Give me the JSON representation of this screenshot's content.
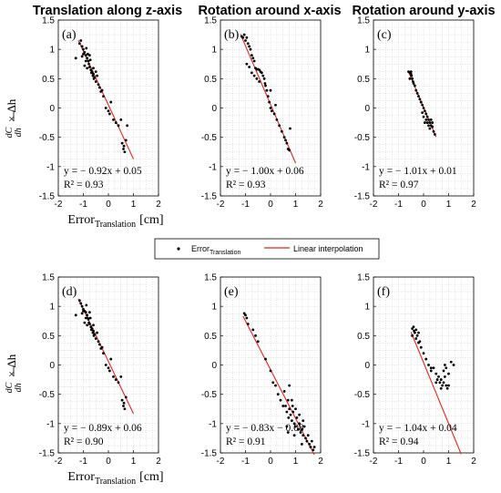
{
  "legend": {
    "points_label": "Error",
    "points_sub": "Translation",
    "line_label": "Linear interpolation"
  },
  "y_axis_label": {
    "numerator": "dC",
    "denominator": "dh",
    "rest": "× Δh"
  },
  "colors": {
    "line": "#e8231f",
    "points": "#000000",
    "grid": "#c8c8c8"
  },
  "chart_data": [
    {
      "type": "scatter",
      "panel": "(a)",
      "title": "Translation along z-axis",
      "xlabel": "Error",
      "xlabel_sub": "Translation",
      "xlabel_unit": "[cm]",
      "xlim": [
        -2,
        2
      ],
      "ylim": [
        -1.5,
        1.5
      ],
      "xticks": [
        -2,
        -1,
        0,
        1,
        2
      ],
      "yticks": [
        -1.5,
        -1,
        -0.5,
        0,
        0.5,
        1,
        1.5
      ],
      "grid": true,
      "fit": {
        "slope": -0.92,
        "intercept": 0.05,
        "x_range": [
          -1.2,
          1.0
        ]
      },
      "equation": "y = − 0.92x + 0.05",
      "r2": "R² = 0.93",
      "points": [
        [
          -1.15,
          1.1
        ],
        [
          -1.1,
          1.15
        ],
        [
          -1.05,
          1.05
        ],
        [
          -1.0,
          1.0
        ],
        [
          -0.95,
          0.95
        ],
        [
          -0.9,
          0.9
        ],
        [
          -0.88,
          1.02
        ],
        [
          -0.85,
          0.85
        ],
        [
          -0.82,
          0.92
        ],
        [
          -0.8,
          0.8
        ],
        [
          -0.78,
          0.75
        ],
        [
          -0.75,
          0.7
        ],
        [
          -0.72,
          0.82
        ],
        [
          -0.7,
          0.65
        ],
        [
          -0.68,
          0.6
        ],
        [
          -0.65,
          0.62
        ],
        [
          -0.62,
          0.55
        ],
        [
          -0.6,
          0.58
        ],
        [
          -0.58,
          0.5
        ],
        [
          -0.55,
          0.52
        ],
        [
          -0.5,
          0.45
        ],
        [
          -0.45,
          0.55
        ],
        [
          -0.4,
          0.4
        ],
        [
          -0.35,
          0.35
        ],
        [
          -0.3,
          0.28
        ],
        [
          -0.25,
          0.3
        ],
        [
          -0.2,
          0.2
        ],
        [
          -0.1,
          0.0
        ],
        [
          0.0,
          -0.05
        ],
        [
          0.05,
          -0.1
        ],
        [
          0.1,
          0.1
        ],
        [
          0.2,
          -0.2
        ],
        [
          0.3,
          -0.25
        ],
        [
          0.4,
          -0.3
        ],
        [
          0.5,
          -0.2
        ],
        [
          0.55,
          -0.6
        ],
        [
          0.6,
          -0.7
        ],
        [
          0.65,
          -0.75
        ],
        [
          0.7,
          -0.55
        ],
        [
          0.75,
          -0.3
        ],
        [
          -1.3,
          0.85
        ],
        [
          -0.95,
          0.72
        ],
        [
          -0.85,
          0.68
        ],
        [
          -1.05,
          0.88
        ],
        [
          -0.6,
          0.68
        ],
        [
          -0.5,
          0.62
        ],
        [
          0.62,
          -0.65
        ],
        [
          -0.9,
          0.8
        ],
        [
          -0.75,
          0.9
        ],
        [
          -1.0,
          0.92
        ]
      ]
    },
    {
      "type": "scatter",
      "panel": "(b)",
      "title": "Rotation around x-axis",
      "xlabel": "",
      "xlim": [
        -2,
        2
      ],
      "ylim": [
        -1.5,
        1.5
      ],
      "xticks": [
        -2,
        -1,
        0,
        1,
        2
      ],
      "yticks": [
        -1.5,
        -1,
        -0.5,
        0,
        0.5,
        1,
        1.5
      ],
      "grid": true,
      "fit": {
        "slope": -1.0,
        "intercept": 0.06,
        "x_range": [
          -1.2,
          1.0
        ]
      },
      "equation": "y = − 1.00x + 0.06",
      "r2": "R² = 0.93",
      "points": [
        [
          -1.15,
          1.22
        ],
        [
          -1.1,
          1.2
        ],
        [
          -1.05,
          1.25
        ],
        [
          -1.0,
          1.15
        ],
        [
          -0.95,
          1.2
        ],
        [
          -0.9,
          1.1
        ],
        [
          -0.85,
          1.05
        ],
        [
          -0.8,
          1.0
        ],
        [
          -0.75,
          0.9
        ],
        [
          -0.7,
          0.85
        ],
        [
          -0.65,
          0.8
        ],
        [
          -0.6,
          0.68
        ],
        [
          -0.55,
          0.66
        ],
        [
          -0.5,
          0.66
        ],
        [
          -0.45,
          0.65
        ],
        [
          -0.4,
          0.62
        ],
        [
          -0.35,
          0.6
        ],
        [
          -0.3,
          0.55
        ],
        [
          -0.25,
          0.5
        ],
        [
          -0.22,
          0.42
        ],
        [
          -0.2,
          0.38
        ],
        [
          -0.15,
          0.3
        ],
        [
          -0.1,
          0.2
        ],
        [
          -0.05,
          0.1
        ],
        [
          0.0,
          0.0
        ],
        [
          0.05,
          -0.05
        ],
        [
          0.15,
          -0.1
        ],
        [
          0.25,
          -0.2
        ],
        [
          0.35,
          -0.3
        ],
        [
          0.45,
          -0.4
        ],
        [
          0.55,
          -0.5
        ],
        [
          0.6,
          -0.55
        ],
        [
          0.65,
          -0.6
        ],
        [
          0.7,
          -0.7
        ],
        [
          0.75,
          -0.72
        ],
        [
          0.78,
          -0.35
        ],
        [
          -0.95,
          0.75
        ],
        [
          -0.85,
          0.7
        ],
        [
          -0.75,
          0.6
        ],
        [
          -0.65,
          0.55
        ],
        [
          -0.55,
          0.5
        ],
        [
          0.0,
          0.3
        ],
        [
          0.2,
          0.05
        ],
        [
          -0.45,
          0.45
        ]
      ]
    },
    {
      "type": "scatter",
      "panel": "(c)",
      "title": "Rotation around y-axis",
      "xlabel": "",
      "xlim": [
        -2,
        2
      ],
      "ylim": [
        -1.5,
        1.5
      ],
      "xticks": [
        -2,
        -1,
        0,
        1,
        2
      ],
      "yticks": [
        -1.5,
        -1,
        -0.5,
        0,
        0.5,
        1,
        1.5
      ],
      "grid": true,
      "fit": {
        "slope": -1.01,
        "intercept": 0.01,
        "x_range": [
          -0.6,
          0.5
        ]
      },
      "equation": "y = − 1.01x + 0.01",
      "r2": "R² = 0.97",
      "points": [
        [
          -0.6,
          0.62
        ],
        [
          -0.55,
          0.6
        ],
        [
          -0.5,
          0.58
        ],
        [
          -0.48,
          0.55
        ],
        [
          -0.45,
          0.5
        ],
        [
          -0.42,
          0.45
        ],
        [
          -0.4,
          0.42
        ],
        [
          -0.35,
          0.38
        ],
        [
          -0.3,
          0.3
        ],
        [
          -0.25,
          0.25
        ],
        [
          -0.2,
          0.2
        ],
        [
          -0.15,
          0.15
        ],
        [
          -0.1,
          0.1
        ],
        [
          -0.05,
          0.05
        ],
        [
          0.0,
          0.0
        ],
        [
          0.05,
          -0.05
        ],
        [
          0.1,
          -0.1
        ],
        [
          0.15,
          -0.15
        ],
        [
          0.2,
          -0.2
        ],
        [
          0.25,
          -0.25
        ],
        [
          0.3,
          -0.3
        ],
        [
          0.35,
          -0.32
        ],
        [
          0.4,
          -0.4
        ],
        [
          0.45,
          -0.45
        ],
        [
          0.1,
          -0.2
        ],
        [
          0.15,
          -0.25
        ],
        [
          0.2,
          -0.3
        ],
        [
          0.3,
          -0.2
        ],
        [
          0.35,
          -0.25
        ],
        [
          -0.05,
          -0.08
        ],
        [
          0.0,
          -0.15
        ],
        [
          0.05,
          -0.25
        ],
        [
          0.25,
          -0.35
        ],
        [
          -0.55,
          0.5
        ],
        [
          -0.5,
          0.62
        ]
      ]
    },
    {
      "type": "scatter",
      "panel": "(d)",
      "title": "",
      "xlabel": "Error",
      "xlabel_sub": "Translation",
      "xlabel_unit": "[cm]",
      "xlim": [
        -2,
        2
      ],
      "ylim": [
        -1.5,
        1.5
      ],
      "xticks": [
        -2,
        -1,
        0,
        1,
        2
      ],
      "yticks": [
        -1.5,
        -1,
        -0.5,
        0,
        0.5,
        1,
        1.5
      ],
      "grid": true,
      "fit": {
        "slope": -0.89,
        "intercept": 0.06,
        "x_range": [
          -1.2,
          1.0
        ]
      },
      "equation": "y = − 0.89x + 0.06",
      "r2": "R² = 0.90",
      "points": [
        [
          -1.15,
          1.1
        ],
        [
          -1.1,
          1.05
        ],
        [
          -1.05,
          1.0
        ],
        [
          -1.0,
          0.95
        ],
        [
          -0.95,
          0.92
        ],
        [
          -0.9,
          0.9
        ],
        [
          -0.88,
          1.02
        ],
        [
          -0.85,
          0.85
        ],
        [
          -0.82,
          0.8
        ],
        [
          -0.8,
          0.78
        ],
        [
          -0.78,
          0.72
        ],
        [
          -0.75,
          0.7
        ],
        [
          -0.72,
          0.8
        ],
        [
          -0.7,
          0.65
        ],
        [
          -0.68,
          0.6
        ],
        [
          -0.65,
          0.62
        ],
        [
          -0.62,
          0.55
        ],
        [
          -0.6,
          0.58
        ],
        [
          -0.58,
          0.5
        ],
        [
          -0.55,
          0.52
        ],
        [
          -0.5,
          0.45
        ],
        [
          -0.45,
          0.55
        ],
        [
          -0.4,
          0.4
        ],
        [
          -0.35,
          0.35
        ],
        [
          -0.3,
          0.28
        ],
        [
          -0.25,
          0.3
        ],
        [
          -0.2,
          0.2
        ],
        [
          -0.1,
          0.0
        ],
        [
          0.0,
          -0.05
        ],
        [
          0.05,
          -0.1
        ],
        [
          0.1,
          0.1
        ],
        [
          0.2,
          -0.2
        ],
        [
          0.3,
          -0.25
        ],
        [
          0.4,
          -0.3
        ],
        [
          0.5,
          -0.2
        ],
        [
          0.55,
          -0.6
        ],
        [
          0.6,
          -0.7
        ],
        [
          0.65,
          -0.75
        ],
        [
          0.7,
          -0.55
        ],
        [
          -1.3,
          0.85
        ],
        [
          -0.95,
          0.72
        ],
        [
          -0.85,
          0.68
        ],
        [
          -1.05,
          0.88
        ],
        [
          -0.6,
          0.68
        ],
        [
          0.62,
          -0.65
        ],
        [
          -0.9,
          0.8
        ],
        [
          -0.75,
          0.9
        ],
        [
          -1.0,
          0.92
        ]
      ]
    },
    {
      "type": "scatter",
      "panel": "(e)",
      "title": "",
      "xlabel": "",
      "xlim": [
        -2,
        2
      ],
      "ylim": [
        -1.5,
        1.5
      ],
      "xticks": [
        -2,
        -1,
        0,
        1,
        2
      ],
      "yticks": [
        -1.5,
        -1,
        -0.5,
        0,
        0.5,
        1,
        1.5
      ],
      "grid": true,
      "fit": {
        "slope": -0.83,
        "intercept": -0.08,
        "x_range": [
          -1.1,
          1.75
        ]
      },
      "equation": "y = − 0.83x − 0.08",
      "r2": "R² = 0.91",
      "points": [
        [
          -1.05,
          0.88
        ],
        [
          -1.0,
          0.85
        ],
        [
          -0.95,
          0.8
        ],
        [
          -0.9,
          0.7
        ],
        [
          -0.7,
          0.6
        ],
        [
          -0.6,
          0.5
        ],
        [
          -0.5,
          0.4
        ],
        [
          -0.2,
          0.1
        ],
        [
          0.0,
          -0.1
        ],
        [
          0.1,
          -0.3
        ],
        [
          0.2,
          -0.35
        ],
        [
          0.3,
          -0.5
        ],
        [
          0.4,
          -0.6
        ],
        [
          0.5,
          -0.7
        ],
        [
          0.55,
          -0.45
        ],
        [
          0.6,
          -0.7
        ],
        [
          0.65,
          -0.8
        ],
        [
          0.7,
          -0.6
        ],
        [
          0.72,
          -0.9
        ],
        [
          0.75,
          -0.75
        ],
        [
          0.8,
          -0.85
        ],
        [
          0.85,
          -0.95
        ],
        [
          0.88,
          -0.7
        ],
        [
          0.9,
          -0.8
        ],
        [
          0.95,
          -1.0
        ],
        [
          1.0,
          -1.05
        ],
        [
          1.05,
          -0.9
        ],
        [
          1.1,
          -1.1
        ],
        [
          1.15,
          -1.0
        ],
        [
          1.2,
          -1.15
        ],
        [
          1.25,
          -1.1
        ],
        [
          1.3,
          -1.2
        ],
        [
          1.35,
          -1.05
        ],
        [
          1.4,
          -1.25
        ],
        [
          1.45,
          -1.3
        ],
        [
          1.5,
          -1.2
        ],
        [
          1.55,
          -1.35
        ],
        [
          1.6,
          -1.4
        ],
        [
          1.65,
          -1.3
        ],
        [
          1.7,
          -1.45
        ],
        [
          1.75,
          -1.4
        ],
        [
          0.75,
          -0.35
        ],
        [
          0.85,
          -0.6
        ],
        [
          1.0,
          -0.75
        ],
        [
          1.15,
          -0.85
        ],
        [
          1.3,
          -0.95
        ],
        [
          0.95,
          -1.2
        ],
        [
          1.25,
          -1.35
        ],
        [
          0.65,
          -1.05
        ],
        [
          0.7,
          -1.15
        ]
      ]
    },
    {
      "type": "scatter",
      "panel": "(f)",
      "title": "",
      "xlabel": "",
      "xlim": [
        -2,
        2
      ],
      "ylim": [
        -1.5,
        1.5
      ],
      "xticks": [
        -2,
        -1,
        0,
        1,
        2
      ],
      "yticks": [
        -1.5,
        -1,
        -0.5,
        0,
        0.5,
        1,
        1.5
      ],
      "grid": true,
      "fit": {
        "slope": -1.04,
        "intercept": 0.04,
        "x_range": [
          -0.5,
          1.5
        ]
      },
      "equation": "y = − 1.04x + 0.04",
      "r2": "R² = 0.94",
      "points": [
        [
          -0.45,
          0.62
        ],
        [
          -0.4,
          0.65
        ],
        [
          -0.35,
          0.55
        ],
        [
          -0.3,
          0.6
        ],
        [
          -0.25,
          0.5
        ],
        [
          -0.2,
          0.55
        ],
        [
          -0.3,
          0.45
        ],
        [
          -0.2,
          0.38
        ],
        [
          -0.15,
          0.4
        ],
        [
          -0.1,
          0.3
        ],
        [
          0.0,
          0.2
        ],
        [
          0.1,
          0.1
        ],
        [
          0.2,
          0.0
        ],
        [
          0.3,
          -0.1
        ],
        [
          0.4,
          -0.05
        ],
        [
          0.5,
          -0.15
        ],
        [
          0.55,
          -0.25
        ],
        [
          0.6,
          -0.2
        ],
        [
          0.65,
          -0.3
        ],
        [
          0.7,
          -0.25
        ],
        [
          0.75,
          -0.35
        ],
        [
          0.8,
          -0.3
        ],
        [
          0.85,
          -0.2
        ],
        [
          0.9,
          -0.35
        ],
        [
          0.95,
          -0.4
        ],
        [
          1.0,
          -0.35
        ],
        [
          0.8,
          -0.1
        ],
        [
          0.85,
          0.0
        ],
        [
          0.9,
          -0.05
        ],
        [
          1.0,
          -0.15
        ],
        [
          1.1,
          0.05
        ],
        [
          1.2,
          0.0
        ],
        [
          0.7,
          -0.4
        ],
        [
          0.5,
          -0.3
        ],
        [
          0.3,
          -0.05
        ],
        [
          -0.45,
          0.5
        ],
        [
          -0.38,
          0.58
        ]
      ]
    }
  ]
}
